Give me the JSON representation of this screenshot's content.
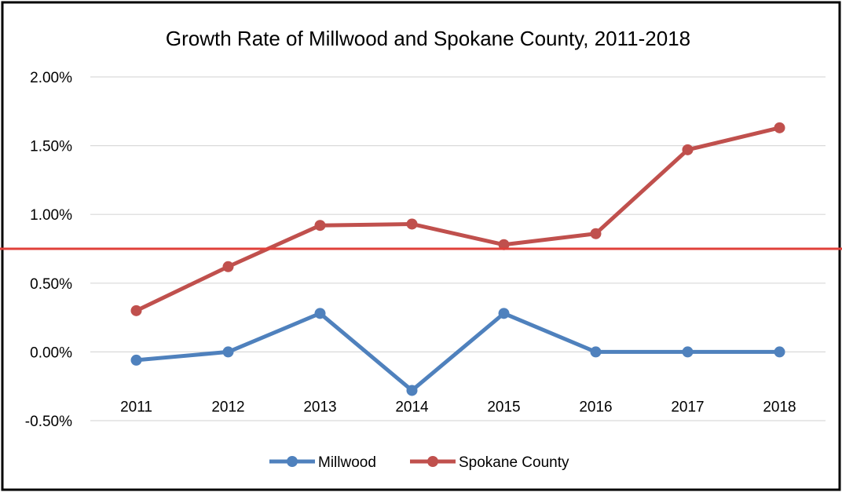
{
  "chart_data": {
    "type": "line",
    "title": "Growth Rate of Millwood and Spokane County, 2011-2018",
    "xlabel": "",
    "ylabel": "",
    "categories": [
      "2011",
      "2012",
      "2013",
      "2014",
      "2015",
      "2016",
      "2017",
      "2018"
    ],
    "ylim": [
      -0.5,
      2.0
    ],
    "yticks": [
      -0.5,
      0.0,
      0.5,
      1.0,
      1.5,
      2.0
    ],
    "ytick_labels": [
      "-0.50%",
      "0.00%",
      "0.50%",
      "1.00%",
      "1.50%",
      "2.00%"
    ],
    "grid": true,
    "legend_position": "bottom",
    "reference_line": {
      "value": 0.75,
      "color": "#e0403a"
    },
    "series": [
      {
        "name": "Millwood",
        "color": "#4f81bd",
        "values": [
          -0.06,
          0.0,
          0.28,
          -0.28,
          0.28,
          0.0,
          0.0,
          0.0
        ]
      },
      {
        "name": "Spokane County",
        "color": "#c0504d",
        "values": [
          0.3,
          0.62,
          0.92,
          0.93,
          0.78,
          0.86,
          1.47,
          1.63
        ]
      }
    ]
  }
}
